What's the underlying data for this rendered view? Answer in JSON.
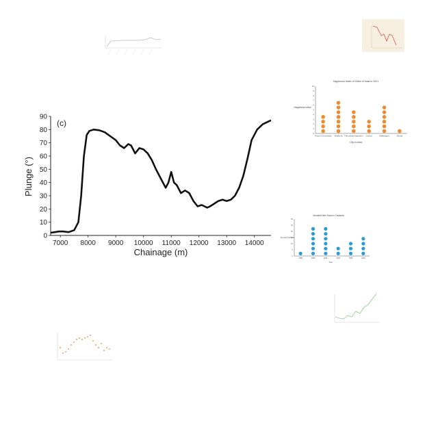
{
  "main_chart": {
    "panel_label": "(c)",
    "ylabel": "Plunge (°)",
    "xlabel": "Chainage (m)",
    "x_ticks": [
      "7000",
      "8000",
      "9000",
      "10000",
      "11000",
      "12000",
      "13000",
      "14000"
    ],
    "y_ticks": [
      "0",
      "10",
      "20",
      "30",
      "40",
      "50",
      "60",
      "70",
      "80",
      "90"
    ]
  },
  "thumb_city": {
    "title": "Happiness Index of Cities of India in 2021",
    "ylabel": "Happiness Index",
    "xlabel": "City in India",
    "y_ticks": [
      "0",
      "1",
      "2",
      "3",
      "4",
      "5",
      "6",
      "7",
      "8",
      "9",
      "10"
    ]
  },
  "thumb_snow": {
    "title": "Snowfall New Snow in Tuscania",
    "ylabel": "Amount (inches)",
    "xlabel": "Year",
    "y_ticks": [
      "0",
      "5",
      "10",
      "15",
      "20",
      "25",
      "30"
    ]
  },
  "chart_data": [
    {
      "type": "line",
      "title": "",
      "panel_label": "(c)",
      "xlabel": "Chainage (m)",
      "ylabel": "Plunge (°)",
      "xlim": [
        6650,
        14600
      ],
      "ylim": [
        0,
        90
      ],
      "grid": false,
      "series": [
        {
          "x": [
            6650,
            6800,
            6950,
            7100,
            7300,
            7500,
            7650,
            7750,
            7850,
            7950,
            8050,
            8200,
            8400,
            8600,
            8800,
            9000,
            9150,
            9300,
            9450,
            9550,
            9700,
            9850,
            10000,
            10150,
            10300,
            10450,
            10650,
            10800,
            10900,
            11000,
            11100,
            11200,
            11350,
            11500,
            11650,
            11800,
            11950,
            12100,
            12200,
            12300,
            12400,
            12550,
            12700,
            12850,
            13000,
            13150,
            13300,
            13450,
            13600,
            13750,
            13900,
            14100,
            14300,
            14500,
            14600
          ],
          "y": [
            2,
            2.5,
            3,
            3,
            2.5,
            4,
            10,
            30,
            60,
            76,
            79,
            80,
            79.5,
            78,
            75,
            72,
            68,
            66,
            69,
            68,
            62,
            66,
            65,
            62,
            57,
            50,
            42,
            36,
            40,
            48,
            40,
            38,
            32,
            34,
            32,
            26,
            22,
            23,
            22,
            21,
            22,
            24,
            26,
            27,
            26,
            27,
            30,
            36,
            45,
            58,
            72,
            80,
            84,
            86,
            87
          ]
        }
      ]
    },
    {
      "type": "scatter",
      "title": "Happiness Index of Cities of India in 2021",
      "xlabel": "City in India",
      "ylabel": "Happiness Index",
      "ylim": [
        0,
        10
      ],
      "categories": [
        "Pimpri Chinchwad",
        "Madhura",
        "Thiruvananthapuram",
        "Guntur",
        "Walkalapur",
        "Warud"
      ],
      "values": [
        4,
        7,
        5,
        3,
        6,
        1
      ]
    },
    {
      "type": "scatter",
      "title": "Snowfall New Snow in Tuscania",
      "xlabel": "Year",
      "ylabel": "Amount (inches)",
      "ylim": [
        0,
        30
      ],
      "categories": [
        "1989",
        "1990",
        "1991",
        "1992",
        "1993",
        "1994"
      ],
      "values": [
        5,
        25,
        22,
        8,
        12,
        15
      ]
    }
  ]
}
